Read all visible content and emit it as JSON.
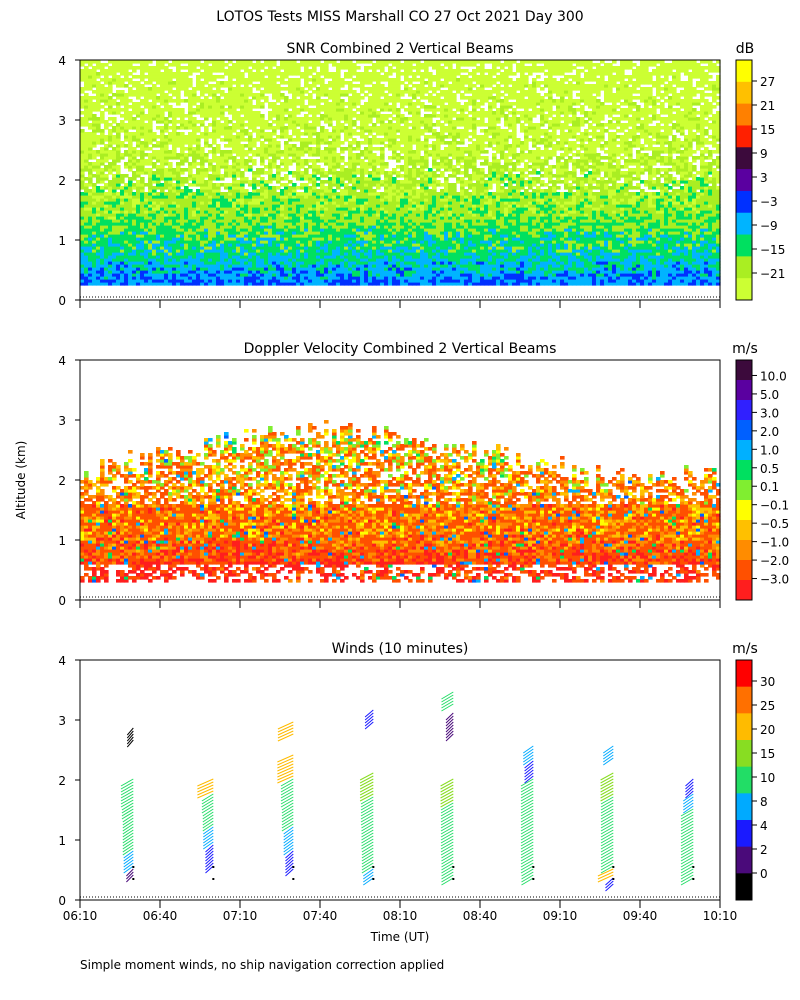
{
  "figure_title": "LOTOS Tests MISS Marshall CO  27 Oct 2021 Day 300",
  "footnote": "Simple moment winds, no ship navigation correction applied",
  "shared": {
    "y_label": "Altitude (km)",
    "x_label": "Time (UT)",
    "x_ticks": [
      "06:10",
      "06:40",
      "07:10",
      "07:40",
      "08:10",
      "08:40",
      "09:10",
      "09:40",
      "10:10"
    ],
    "x_range_min": [
      370,
      610
    ],
    "y_ticks": [
      "0",
      "1",
      "2",
      "3",
      "4"
    ],
    "ylim_km": [
      0,
      4
    ]
  },
  "chart_data": [
    {
      "type": "heatmap",
      "title": "SNR Combined 2 Vertical Beams",
      "units": "dB",
      "colorbar_labels": [
        "27",
        "21",
        "15",
        "9",
        "3",
        "−3",
        "−9",
        "−15",
        "−21"
      ],
      "colorbar_colors": [
        "#ffff00",
        "#ffc000",
        "#ff8000",
        "#ff2000",
        "#3c0a3c",
        "#5a00a0",
        "#0030ff",
        "#00b4ff",
        "#00e060",
        "#aaee22",
        "#ccff33"
      ],
      "altitude_profile_km": [
        0.3,
        0.5,
        0.8,
        1.2,
        1.6,
        2.0,
        2.5,
        3.0,
        3.5,
        3.9
      ],
      "typical_snr_db": [
        -3,
        -6,
        -9,
        -12,
        -15,
        -16,
        -19,
        -20,
        -21,
        -22
      ],
      "data_top_km": 3.95,
      "data_bottom_km": 0.25,
      "colors": {
        "frame": "#000000",
        "baseline": "#000000"
      }
    },
    {
      "type": "heatmap",
      "title": "Doppler Velocity Combined 2 Vertical Beams",
      "units": "m/s",
      "colorbar_labels": [
        "10.0",
        "5.0",
        "3.0",
        "2.0",
        "1.0",
        "0.5",
        "0.1",
        "−0.1",
        "−0.5",
        "−1.0",
        "−2.0",
        "−3.0"
      ],
      "colorbar_colors": [
        "#3c0a3c",
        "#5a00a0",
        "#3020ff",
        "#0060ff",
        "#00b0ff",
        "#00e060",
        "#80ee30",
        "#ffff00",
        "#ffc000",
        "#ff8c00",
        "#ff5000",
        "#ff1e1e"
      ],
      "altitude_profile_km": [
        0.5,
        0.8,
        1.1,
        1.5,
        2.0,
        2.5
      ],
      "typical_velocity_ms": [
        -2.0,
        -1.5,
        -1.0,
        -1.0,
        -0.7,
        -0.5
      ],
      "data_top_km": 3.0,
      "data_bottom_km": 0.3
    },
    {
      "type": "scatter",
      "title": "Winds (10 minutes)",
      "units": "m/s",
      "colorbar_labels": [
        "30",
        "25",
        "20",
        "15",
        "10",
        "8",
        "4",
        "2",
        "0"
      ],
      "colorbar_colors": [
        "#ff0000",
        "#ff7000",
        "#ffbb00",
        "#88dd22",
        "#22dd66",
        "#00aaff",
        "#1a1aff",
        "#4a0a7a",
        "#000000"
      ],
      "profiles": [
        {
          "time_min": 390,
          "alt_km": [
            0.35,
            0.5,
            0.8,
            1.1,
            1.4,
            1.6,
            2.6
          ],
          "speed_ms": [
            2,
            8,
            10,
            10,
            12,
            14,
            0
          ]
        },
        {
          "time_min": 420,
          "alt_km": [
            0.5,
            0.9,
            1.2,
            1.5,
            1.75
          ],
          "speed_ms": [
            4,
            9,
            10,
            12,
            22
          ]
        },
        {
          "time_min": 450,
          "alt_km": [
            0.45,
            0.8,
            1.2,
            1.6,
            2.0,
            2.7
          ],
          "speed_ms": [
            4,
            8,
            12,
            14,
            22,
            21
          ]
        },
        {
          "time_min": 480,
          "alt_km": [
            0.3,
            0.5,
            0.9,
            1.3,
            1.7,
            2.9
          ],
          "speed_ms": [
            9,
            12,
            13,
            14,
            16,
            5
          ]
        },
        {
          "time_min": 510,
          "alt_km": [
            0.3,
            0.5,
            0.8,
            1.2,
            1.6,
            2.7,
            3.2
          ],
          "speed_ms": [
            13,
            13,
            14,
            14,
            15,
            3,
            13
          ]
        },
        {
          "time_min": 540,
          "alt_km": [
            0.3,
            0.5,
            0.9,
            1.3,
            1.7,
            2.0,
            2.3
          ],
          "speed_ms": [
            13,
            14,
            14,
            14,
            14,
            6,
            9
          ]
        },
        {
          "time_min": 570,
          "alt_km": [
            0.2,
            0.35,
            0.5,
            0.9,
            1.3,
            1.7,
            2.3
          ],
          "speed_ms": [
            4,
            21,
            14,
            14,
            14,
            15,
            9
          ]
        },
        {
          "time_min": 600,
          "alt_km": [
            0.3,
            0.5,
            0.9,
            1.2,
            1.5,
            1.75
          ],
          "speed_ms": [
            14,
            14,
            14,
            14,
            9,
            4
          ]
        }
      ],
      "missing_levels_time_min": [
        390,
        420,
        450,
        480,
        510,
        540,
        570,
        600
      ]
    }
  ]
}
